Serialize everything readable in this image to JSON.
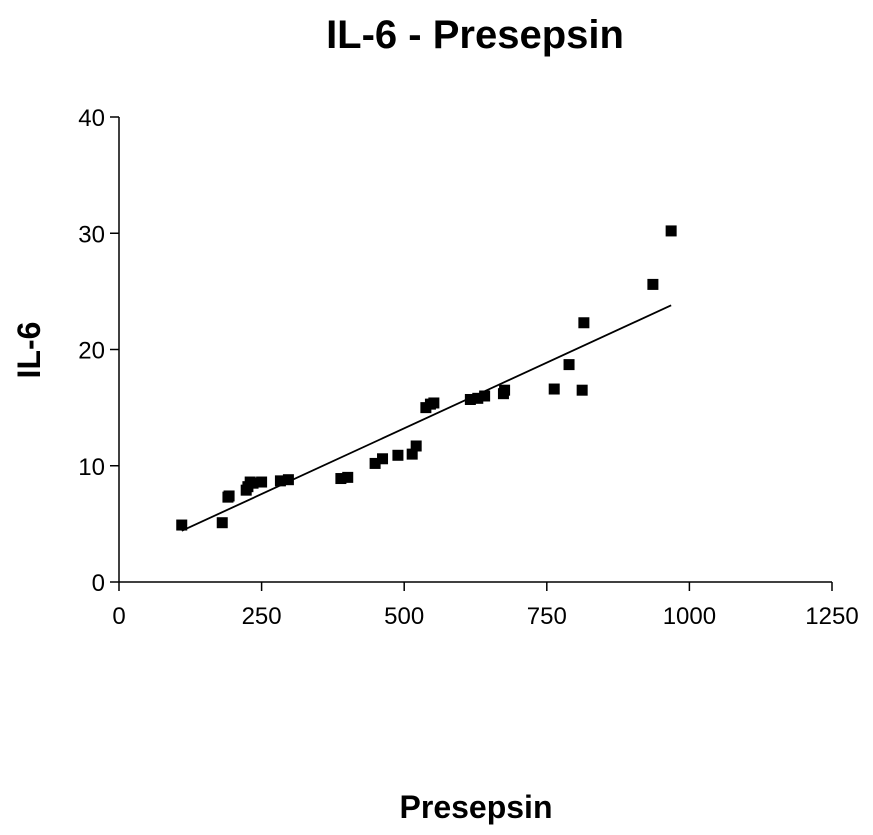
{
  "chart_data": {
    "type": "scatter",
    "title": "IL-6 - Presepsin",
    "xlabel": "Presepsin",
    "ylabel": "IL-6",
    "xlim": [
      0,
      1250
    ],
    "ylim": [
      0,
      40
    ],
    "xticks": [
      0,
      250,
      500,
      750,
      1000,
      1250
    ],
    "yticks": [
      0,
      10,
      20,
      30,
      40
    ],
    "grid": false,
    "marker": "square",
    "series": [
      {
        "points": [
          [
            110,
            4.9
          ],
          [
            181,
            5.1
          ],
          [
            191,
            7.3
          ],
          [
            193,
            7.4
          ],
          [
            223,
            7.9
          ],
          [
            226,
            8.2
          ],
          [
            230,
            8.6
          ],
          [
            235,
            8.5
          ],
          [
            250,
            8.6
          ],
          [
            283,
            8.7
          ],
          [
            297,
            8.8
          ],
          [
            389,
            8.9
          ],
          [
            401,
            9.0
          ],
          [
            449,
            10.2
          ],
          [
            462,
            10.6
          ],
          [
            489,
            10.9
          ],
          [
            514,
            11.0
          ],
          [
            521,
            11.7
          ],
          [
            538,
            15.0
          ],
          [
            546,
            15.3
          ],
          [
            552,
            15.4
          ],
          [
            616,
            15.7
          ],
          [
            629,
            15.8
          ],
          [
            641,
            16.0
          ],
          [
            674,
            16.2
          ],
          [
            676,
            16.5
          ],
          [
            763,
            16.6
          ],
          [
            789,
            18.7
          ],
          [
            812,
            16.5
          ],
          [
            815,
            22.3
          ],
          [
            936,
            25.6
          ],
          [
            968,
            30.2
          ]
        ]
      }
    ],
    "trendline": {
      "x": [
        110,
        968
      ],
      "y": [
        4.4,
        23.8
      ]
    }
  }
}
